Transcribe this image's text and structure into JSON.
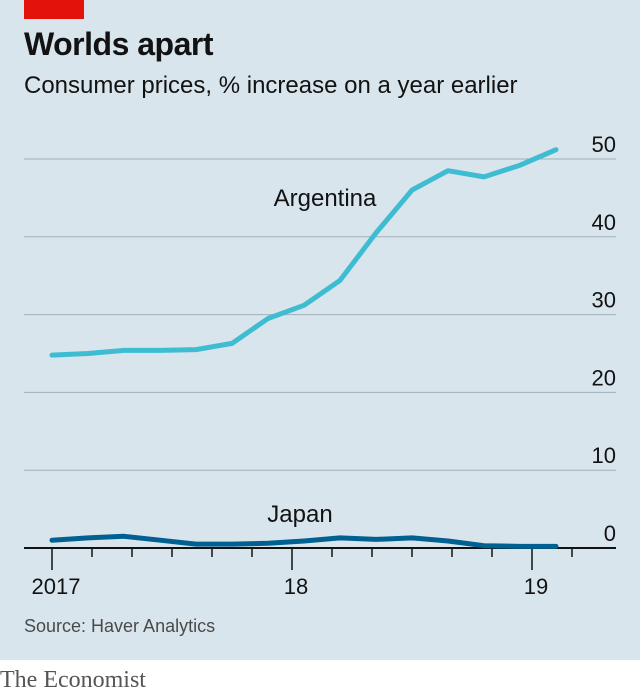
{
  "header": {
    "title": "Worlds apart",
    "subtitle": "Consumer prices, % increase on a year earlier"
  },
  "footer": {
    "source": "Source: Haver Analytics",
    "brand": "The Economist"
  },
  "colors": {
    "background": "#d9e5ec",
    "accent": "#e3120b",
    "argentina": "#3ebcd2",
    "japan": "#006092",
    "gridline": "#9fb0ba"
  },
  "chart_data": {
    "type": "line",
    "title": "Worlds apart",
    "subtitle": "Consumer prices, % increase on a year earlier",
    "xlabel": "",
    "ylabel": "",
    "ylim": [
      0,
      50
    ],
    "yticks": [
      0,
      10,
      20,
      30,
      40,
      50
    ],
    "y_axis_position": "right",
    "grid": true,
    "x_ticks": [
      {
        "label": "2017",
        "month": 0
      },
      {
        "label": "18",
        "month": 12
      },
      {
        "label": "19",
        "month": 24
      }
    ],
    "x_range_months": [
      0,
      26
    ],
    "series": [
      {
        "name": "Argentina",
        "color": "#3ebcd2",
        "start_month": 0,
        "values": [
          24.8,
          25.0,
          25.4,
          25.4,
          25.5,
          26.3,
          29.5,
          31.2,
          34.4,
          40.5,
          46.0,
          48.5,
          47.7,
          49.2,
          51.2
        ]
      },
      {
        "name": "Japan",
        "color": "#006092",
        "start_month": 0,
        "values": [
          1.0,
          1.3,
          1.5,
          1.0,
          0.5,
          0.5,
          0.6,
          0.9,
          1.3,
          1.1,
          1.3,
          0.9,
          0.3,
          0.2,
          0.2
        ]
      }
    ]
  }
}
